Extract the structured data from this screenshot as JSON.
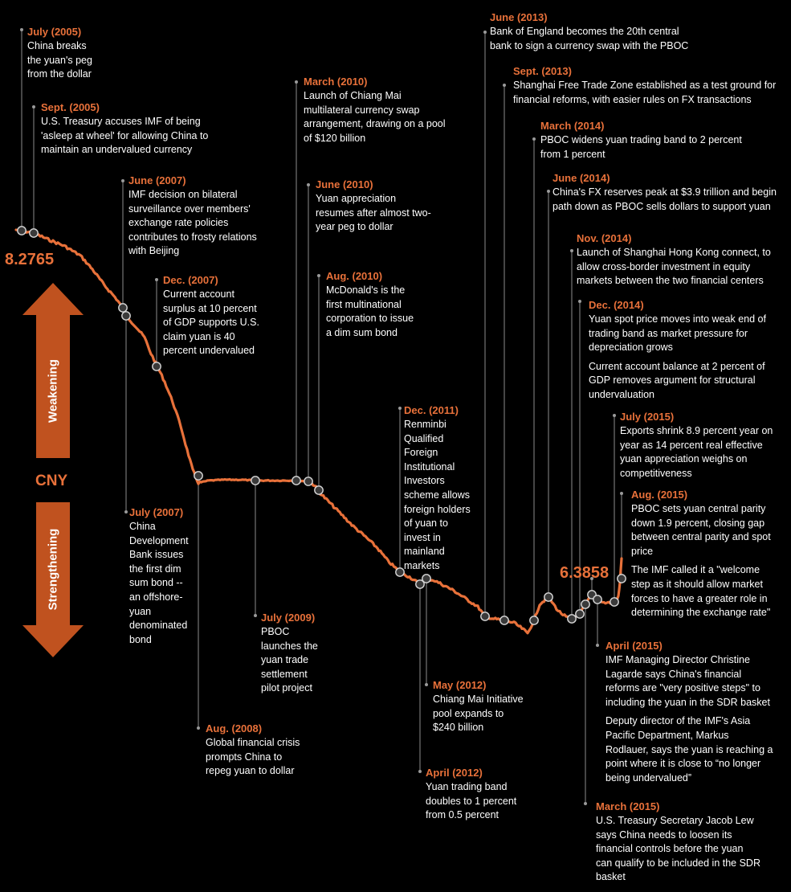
{
  "colors": {
    "background": "#000000",
    "accent": "#e8713a",
    "arrow": "#c0521f",
    "text": "#ffffff",
    "leader": "#8c8c8c"
  },
  "labels": {
    "start_value": "8.2765",
    "end_value": "6.3858",
    "currency": "CNY",
    "up_arrow": "Weakening",
    "down_arrow": "Strengthening"
  },
  "chart_data": {
    "type": "line",
    "x_start": "2005-07",
    "x_end": "2015-08",
    "y_start": 8.2765,
    "y_end": 6.3858,
    "series": [
      {
        "values": [
          8.2765,
          8.11,
          8.07,
          7.82,
          7.62,
          7.46,
          7.26,
          6.93,
          6.83,
          6.83,
          6.83,
          6.83,
          6.83,
          6.83,
          6.8,
          6.67,
          6.58,
          6.41,
          6.33,
          6.29,
          6.33,
          6.3,
          6.2,
          6.15,
          6.11,
          6.05,
          6.21,
          6.19,
          6.21,
          6.2,
          6.21,
          6.23,
          6.3858
        ]
      }
    ]
  },
  "events": [
    {
      "date": "July (2005)",
      "text": "China breaks\nthe yuan's peg\nfrom the dollar"
    },
    {
      "date": "Sept. (2005)",
      "text": "U.S. Treasury accuses IMF of being\n'asleep at wheel' for allowing China to\nmaintain an undervalued currency"
    },
    {
      "date": "June (2007)",
      "text": "IMF decision on bilateral\nsurveillance over members'\nexchange rate policies\ncontributes to frosty relations\nwith Beijing"
    },
    {
      "date": "Dec. (2007)",
      "text": "Current account\nsurplus at 10 percent\nof GDP supports U.S.\nclaim yuan is 40\npercent undervalued"
    },
    {
      "date": "July (2007)",
      "text": "China\nDevelopment\nBank issues\nthe first dim\nsum bond --\nan offshore-\nyuan\ndenominated\nbond"
    },
    {
      "date": "Aug. (2008)",
      "text": "Global financial crisis\nprompts China to\nrepeg yuan to dollar"
    },
    {
      "date": "July (2009)",
      "text": "PBOC\nlaunches the\nyuan trade\nsettlement\npilot project"
    },
    {
      "date": "March (2010)",
      "text": "Launch of Chiang Mai\nmultilateral currency swap\narrangement, drawing on a pool\nof $120 billion"
    },
    {
      "date": "June (2010)",
      "text": "Yuan appreciation\nresumes after almost two-\nyear peg to dollar"
    },
    {
      "date": "Aug. (2010)",
      "text": "McDonald's is the\nfirst multinational\ncorporation to issue\na dim sum bond"
    },
    {
      "date": "Dec. (2011)",
      "text": "Renminbi\nQualified\nForeign\nInstitutional\nInvestors\nscheme allows\nforeign holders\nof yuan to\ninvest in\nmainland\nmarkets"
    },
    {
      "date": "May (2012)",
      "text": "Chiang Mai Initiative\npool expands to\n$240 billion"
    },
    {
      "date": "April (2012)",
      "text": "Yuan trading band\ndoubles to 1 percent\nfrom 0.5 percent"
    },
    {
      "date": "June (2013)",
      "text": "Bank of England becomes the 20th central\nbank to sign a currency swap with the PBOC"
    },
    {
      "date": "Sept. (2013)",
      "text": "Shanghai Free Trade Zone established as a test ground for\nfinancial reforms, with easier rules on FX transactions"
    },
    {
      "date": "March (2014)",
      "text": "PBOC widens yuan trading band to 2 percent\nfrom 1 percent"
    },
    {
      "date": "June (2014)",
      "text": "China's FX reserves peak at $3.9 trillion and begin\npath down as PBOC sells dollars to support yuan"
    },
    {
      "date": "Nov. (2014)",
      "text": "Launch of Shanghai Hong Kong connect, to\nallow cross-border investment in equity\nmarkets between the two financial centers"
    },
    {
      "date": "Dec. (2014)",
      "text": "Yuan spot price moves into weak end of\ntrading band as market pressure for\ndepreciation grows",
      "text2": "Current account balance at 2 percent of\nGDP removes argument for structural\nundervaluation"
    },
    {
      "date": "July (2015)",
      "text": "Exports shrink 8.9 percent year on\nyear as 14  percent real effective\nyuan appreciation weighs on\ncompetitiveness"
    },
    {
      "date": "Aug. (2015)",
      "text": "PBOC sets yuan central parity\ndown 1.9 percent, closing gap\nbetween central parity and spot\nprice",
      "text2": "The IMF called it a \"welcome\nstep as it should allow market\nforces to have a greater role in\ndetermining the exchange rate\""
    },
    {
      "date": "April (2015)",
      "text": "IMF Managing Director Christine\nLagarde says China's financial\nreforms are \"very positive steps\" to\nincluding the yuan in the SDR basket",
      "text2": "Deputy director of the IMF's Asia\nPacific Department, Markus\nRodlauer, says the yuan is reaching a\npoint where it is close to “no longer\nbeing undervalued”"
    },
    {
      "date": "March (2015)",
      "text": "U.S. Treasury Secretary Jacob Lew\nsays China needs to loosen its\nfinancial controls before the yuan\ncan qualify to be included in the SDR\nbasket"
    }
  ]
}
